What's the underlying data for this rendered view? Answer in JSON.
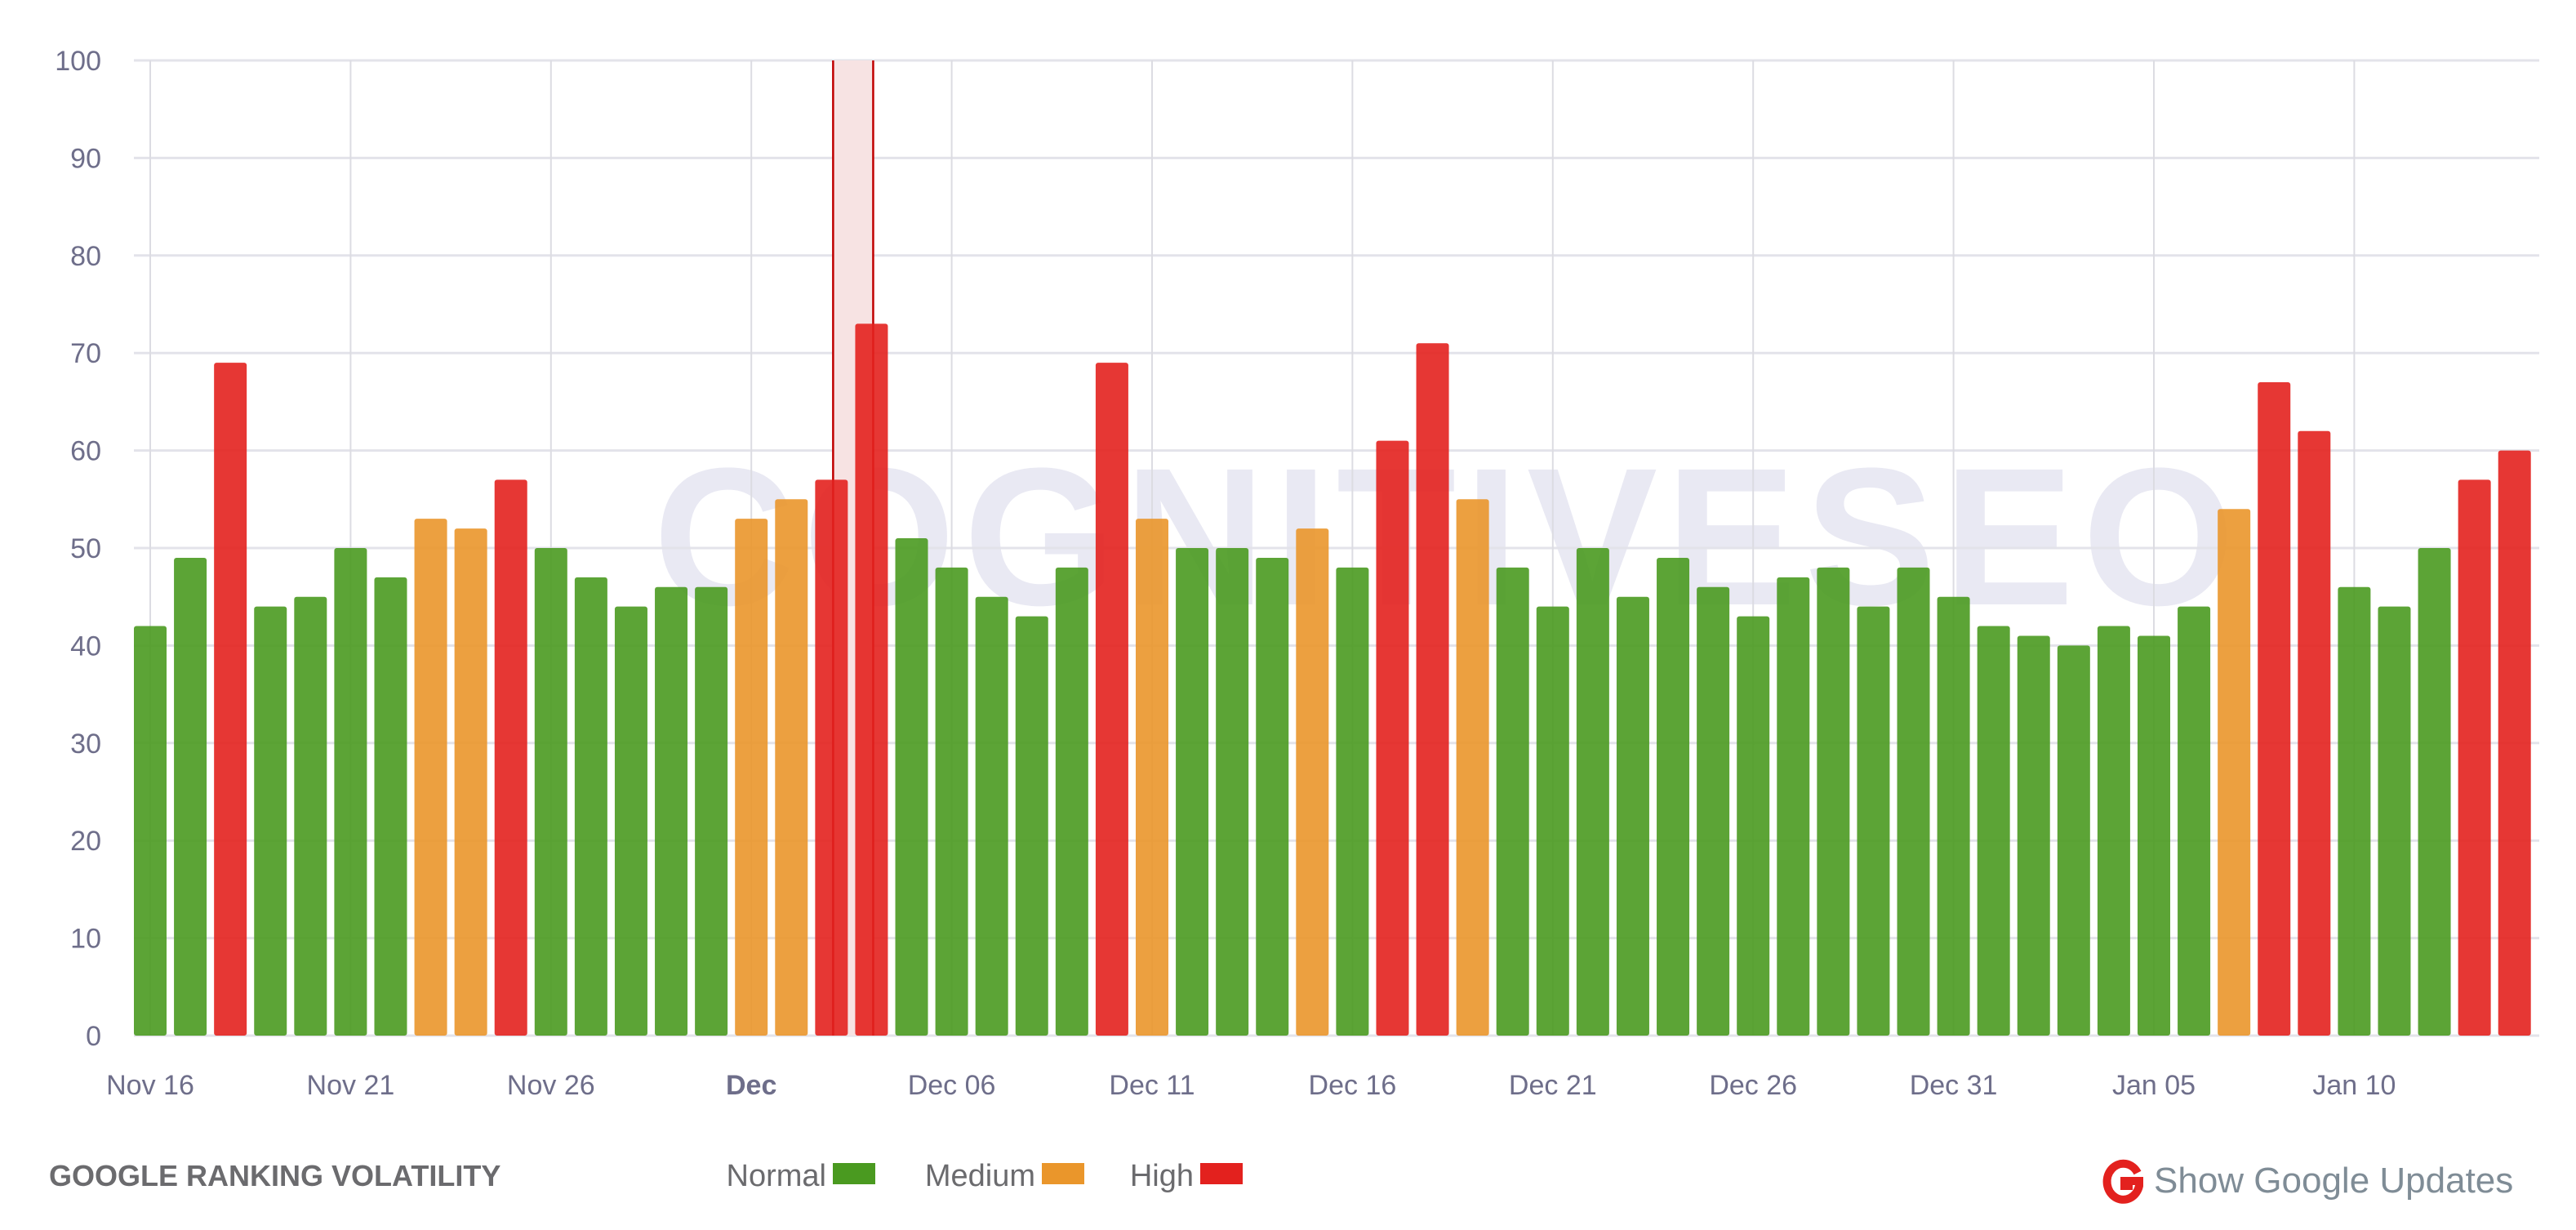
{
  "watermark": "COGNITIVESEO",
  "chart_data": {
    "type": "bar",
    "title": "GOOGLE RANKING VOLATILITY",
    "xlabel": "",
    "ylabel": "",
    "ylim": [
      0,
      100
    ],
    "yticks": [
      0,
      10,
      20,
      30,
      40,
      50,
      60,
      70,
      80,
      90,
      100
    ],
    "grid": true,
    "x_tick_labels": [
      {
        "label": "Nov 16",
        "index": 0,
        "bold": false
      },
      {
        "label": "Nov 21",
        "index": 5,
        "bold": false
      },
      {
        "label": "Nov 26",
        "index": 10,
        "bold": false
      },
      {
        "label": "Dec",
        "index": 15,
        "bold": true
      },
      {
        "label": "Dec 06",
        "index": 20,
        "bold": false
      },
      {
        "label": "Dec 11",
        "index": 25,
        "bold": false
      },
      {
        "label": "Dec 16",
        "index": 30,
        "bold": false
      },
      {
        "label": "Dec 21",
        "index": 35,
        "bold": false
      },
      {
        "label": "Dec 26",
        "index": 40,
        "bold": false
      },
      {
        "label": "Dec 31",
        "index": 45,
        "bold": false
      },
      {
        "label": "Jan 05",
        "index": 50,
        "bold": false
      },
      {
        "label": "Jan 10",
        "index": 55,
        "bold": false
      }
    ],
    "categories": [
      "Nov 16",
      "Nov 17",
      "Nov 18",
      "Nov 19",
      "Nov 20",
      "Nov 21",
      "Nov 22",
      "Nov 23",
      "Nov 24",
      "Nov 25",
      "Nov 26",
      "Nov 27",
      "Nov 28",
      "Nov 29",
      "Nov 30",
      "Dec 01",
      "Dec 02",
      "Dec 03",
      "Dec 04",
      "Dec 05",
      "Dec 06",
      "Dec 07",
      "Dec 08",
      "Dec 09",
      "Dec 10",
      "Dec 11",
      "Dec 12",
      "Dec 13",
      "Dec 14",
      "Dec 15",
      "Dec 16",
      "Dec 17",
      "Dec 18",
      "Dec 19",
      "Dec 20",
      "Dec 21",
      "Dec 22",
      "Dec 23",
      "Dec 24",
      "Dec 25",
      "Dec 26",
      "Dec 27",
      "Dec 28",
      "Dec 29",
      "Dec 30",
      "Dec 31",
      "Jan 01",
      "Jan 02",
      "Jan 03",
      "Jan 04",
      "Jan 05",
      "Jan 06",
      "Jan 07",
      "Jan 08",
      "Jan 09",
      "Jan 10",
      "Jan 11",
      "Jan 12",
      "Jan 13",
      "Jan 14"
    ],
    "values": [
      42,
      49,
      69,
      44,
      45,
      50,
      47,
      53,
      52,
      57,
      50,
      47,
      44,
      46,
      46,
      53,
      55,
      57,
      73,
      51,
      48,
      45,
      43,
      48,
      69,
      53,
      50,
      50,
      49,
      52,
      48,
      61,
      71,
      55,
      48,
      44,
      50,
      45,
      49,
      46,
      43,
      47,
      48,
      44,
      48,
      45,
      42,
      41,
      40,
      42,
      41,
      44,
      54,
      67,
      62,
      46,
      44,
      50,
      57,
      60
    ],
    "levels": [
      "normal",
      "normal",
      "high",
      "normal",
      "normal",
      "normal",
      "normal",
      "medium",
      "medium",
      "high",
      "normal",
      "normal",
      "normal",
      "normal",
      "normal",
      "medium",
      "medium",
      "high",
      "high",
      "normal",
      "normal",
      "normal",
      "normal",
      "normal",
      "high",
      "medium",
      "normal",
      "normal",
      "normal",
      "medium",
      "normal",
      "high",
      "high",
      "medium",
      "normal",
      "normal",
      "normal",
      "normal",
      "normal",
      "normal",
      "normal",
      "normal",
      "normal",
      "normal",
      "normal",
      "normal",
      "normal",
      "normal",
      "normal",
      "normal",
      "normal",
      "normal",
      "medium",
      "high",
      "high",
      "normal",
      "normal",
      "normal",
      "high",
      "high"
    ],
    "highlight_range": [
      "Dec 03",
      "Dec 04"
    ],
    "legend": [
      {
        "key": "normal",
        "label": "Normal",
        "color": "#4a9a20"
      },
      {
        "key": "medium",
        "label": "Medium",
        "color": "#ea962b"
      },
      {
        "key": "high",
        "label": "High",
        "color": "#e3211e"
      }
    ],
    "legend_position": "bottom"
  },
  "google_updates": {
    "label": "Show Google Updates",
    "icon": "google-g-icon",
    "color": "#e3211e"
  }
}
